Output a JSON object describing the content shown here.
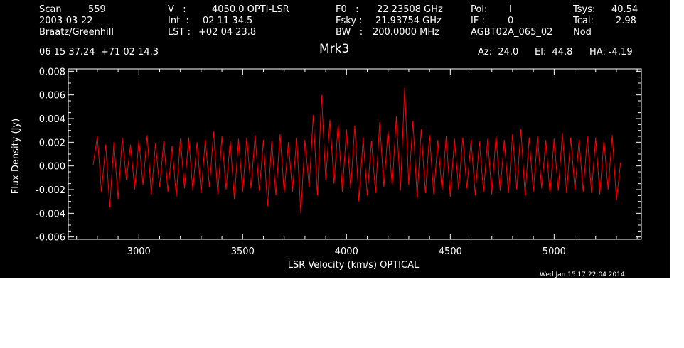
{
  "header": {
    "scan_label": "Scan",
    "scan_value": "559",
    "date": "2003-03-22",
    "observers": "Braatz/Greenhill",
    "v_label": "V   :",
    "v_value": "4050.0 OPTI-LSR",
    "int_label": "Int  :",
    "int_value": "02 11 34.5",
    "lst_label": "LST :",
    "lst_value": "+02 04 23.8",
    "f0_label": "F0   :",
    "f0_value": "22.23508 GHz",
    "fsky_label": "Fsky :",
    "fsky_value": "21.93754 GHz",
    "bw_label": "BW   :",
    "bw_value": "200.0000 MHz",
    "pol_label": "Pol:",
    "pol_value": "I",
    "if_label": "IF :",
    "if_value": "0",
    "project": "AGBT02A_065_02",
    "tsys_label": "Tsys:",
    "tsys_value": "40.54",
    "tcal_label": "Tcal:",
    "tcal_value": "2.98",
    "mode": "Nod",
    "coords": "06 15 37.24  +71 02 14.3",
    "source": "Mrk3",
    "az": "Az:  24.0",
    "el": "El:  44.8",
    "ha": "HA: -4.19"
  },
  "footer": {
    "timestamp": "Wed Jan 15 17:22:04 2014"
  },
  "colors": {
    "background": "#000000",
    "axes": "#ffffff",
    "trace": "#ff0000"
  },
  "chart_data": {
    "type": "line",
    "title": "Mrk3",
    "xlabel": "LSR Velocity (km/s) OPTICAL",
    "ylabel": "Flux Density (Jy)",
    "xlim": [
      2660,
      5420
    ],
    "ylim": [
      -0.0062,
      0.0082
    ],
    "x_ticks": [
      3000,
      3500,
      4000,
      4500,
      5000
    ],
    "x_tick_labels": [
      "3000",
      "3500",
      "4000",
      "4500",
      "5000"
    ],
    "y_ticks": [
      -0.006,
      -0.004,
      -0.002,
      0.0,
      0.002,
      0.004,
      0.006,
      0.008
    ],
    "y_tick_labels": [
      "-0.006",
      "-0.004",
      "-0.002",
      "0.000",
      "0.002",
      "0.004",
      "0.006",
      "0.008"
    ],
    "x_start": 2780,
    "x_end": 5340,
    "x_step": 20,
    "series": [
      {
        "y": [
          0.0001,
          0.0025,
          -0.0022,
          0.0018,
          -0.0035,
          0.002,
          -0.0028,
          0.0024,
          -0.0012,
          0.0018,
          -0.002,
          0.0022,
          -0.0016,
          0.0026,
          -0.0024,
          0.0019,
          -0.0018,
          0.0021,
          -0.0022,
          0.0017,
          -0.0026,
          0.0023,
          -0.0019,
          0.0024,
          -0.0021,
          0.002,
          -0.0023,
          0.0022,
          -0.0018,
          0.0029,
          -0.0024,
          0.0025,
          -0.002,
          0.0021,
          -0.0028,
          0.0023,
          -0.0022,
          0.0024,
          -0.0019,
          0.0026,
          -0.0021,
          0.0022,
          -0.0034,
          0.0021,
          -0.0025,
          0.0027,
          -0.0023,
          0.002,
          -0.0022,
          0.0024,
          -0.004,
          0.0022,
          -0.0018,
          0.0043,
          -0.0025,
          0.006,
          -0.0012,
          0.0039,
          -0.0015,
          0.0036,
          -0.0022,
          0.0031,
          -0.0019,
          0.0034,
          -0.003,
          0.0024,
          -0.0025,
          0.0021,
          -0.0023,
          0.0037,
          -0.0018,
          0.003,
          -0.0017,
          0.0042,
          -0.0021,
          0.0066,
          -0.0016,
          0.0038,
          -0.0027,
          0.0031,
          -0.0023,
          0.0026,
          -0.0024,
          0.0022,
          -0.0021,
          0.0025,
          -0.0026,
          0.0023,
          -0.002,
          0.0024,
          -0.0019,
          0.0022,
          -0.0025,
          0.0021,
          -0.0022,
          0.0023,
          -0.0024,
          0.0026,
          -0.0021,
          0.0022,
          -0.0023,
          0.0027,
          -0.002,
          0.0031,
          -0.0025,
          0.0024,
          -0.0022,
          0.0025,
          -0.0019,
          0.0022,
          -0.0024,
          0.0023,
          -0.0021,
          0.0028,
          -0.0023,
          0.0024,
          -0.002,
          0.0022,
          -0.0022,
          0.0025,
          -0.0023,
          0.0024,
          -0.0024,
          0.0022,
          -0.002,
          0.0026,
          -0.0029,
          0.0003
        ]
      }
    ]
  }
}
